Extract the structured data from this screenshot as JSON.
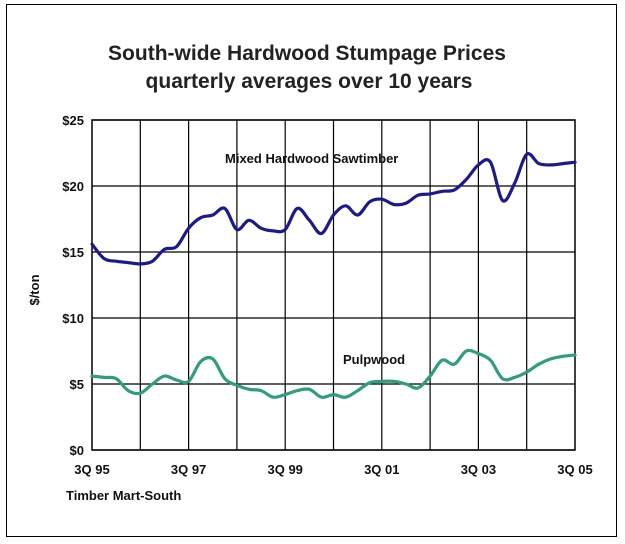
{
  "chart_data": {
    "type": "line",
    "title": "South-wide Hardwood Stumpage Prices",
    "subtitle": "quarterly averages over 10 years",
    "ylabel": "$/ton",
    "xlabel": "",
    "source": "Timber Mart-South",
    "ylim": [
      0,
      25
    ],
    "y_ticks": [
      "$25",
      "$20",
      "$15",
      "$10",
      "$5",
      "$0"
    ],
    "x_ticks": [
      "3Q 95",
      "3Q 97",
      "3Q 99",
      "3Q 01",
      "3Q 03",
      "3Q 05"
    ],
    "grid": true,
    "x_quarters": [
      "3Q 95",
      "4Q 95",
      "1Q 96",
      "2Q 96",
      "3Q 96",
      "4Q 96",
      "1Q 97",
      "2Q 97",
      "3Q 97",
      "4Q 97",
      "1Q 98",
      "2Q 98",
      "3Q 98",
      "4Q 98",
      "1Q 99",
      "2Q 99",
      "3Q 99",
      "4Q 99",
      "1Q 00",
      "2Q 00",
      "3Q 00",
      "4Q 00",
      "1Q 01",
      "2Q 01",
      "3Q 01",
      "4Q 01",
      "1Q 02",
      "2Q 02",
      "3Q 02",
      "4Q 02",
      "1Q 03",
      "2Q 03",
      "3Q 03",
      "4Q 03",
      "1Q 04",
      "2Q 04",
      "3Q 04",
      "4Q 04",
      "1Q 05",
      "2Q 05",
      "3Q 05"
    ],
    "series": [
      {
        "name": "Mixed Hardwood Sawtimber",
        "color": "#1c1a8c",
        "values": [
          15.6,
          14.5,
          14.3,
          14.2,
          14.1,
          14.3,
          15.2,
          15.4,
          16.8,
          17.6,
          17.8,
          18.3,
          16.7,
          17.4,
          16.8,
          16.6,
          16.7,
          18.3,
          17.4,
          16.4,
          17.8,
          18.5,
          17.8,
          18.8,
          19.0,
          18.6,
          18.7,
          19.3,
          19.4,
          19.6,
          19.7,
          20.5,
          21.6,
          21.8,
          18.9,
          20.2,
          22.4,
          21.7,
          21.6,
          21.7,
          21.8
        ]
      },
      {
        "name": "Pulpwood",
        "color": "#2e9e7e",
        "values": [
          5.6,
          5.5,
          5.4,
          4.5,
          4.3,
          5.0,
          5.6,
          5.3,
          5.2,
          6.7,
          6.9,
          5.4,
          4.9,
          4.6,
          4.5,
          4.0,
          4.2,
          4.5,
          4.6,
          4.0,
          4.2,
          4.0,
          4.5,
          5.1,
          5.2,
          5.2,
          5.0,
          4.7,
          5.6,
          6.8,
          6.5,
          7.5,
          7.3,
          6.8,
          5.4,
          5.5,
          5.9,
          6.5,
          6.9,
          7.1,
          7.2
        ]
      }
    ]
  }
}
